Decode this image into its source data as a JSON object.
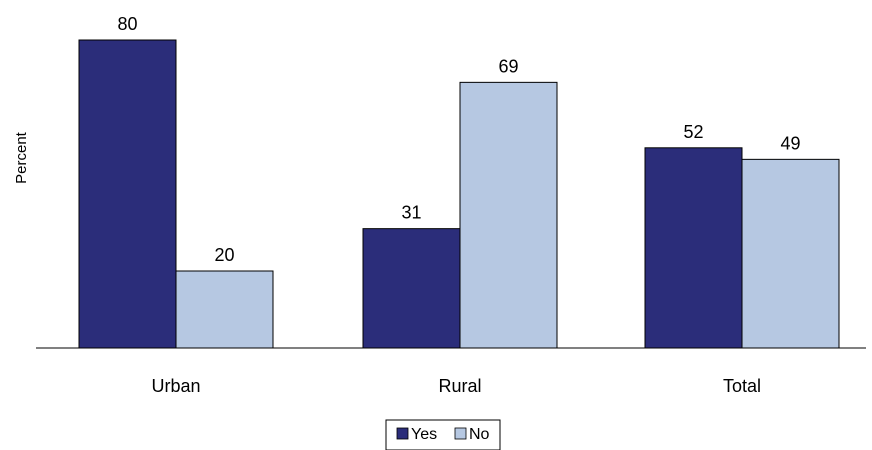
{
  "chart_data": {
    "type": "bar",
    "title": "",
    "xlabel": "",
    "ylabel": "Percent",
    "categories": [
      "Urban",
      "Rural",
      "Total"
    ],
    "series": [
      {
        "name": "Yes",
        "values": [
          80,
          31,
          52
        ],
        "color": "#2b2d7a"
      },
      {
        "name": "No",
        "values": [
          20,
          69,
          49
        ],
        "color": "#b6c8e2"
      }
    ],
    "ylim": [
      0,
      80
    ],
    "grid": false,
    "legend": "bottom-center"
  }
}
